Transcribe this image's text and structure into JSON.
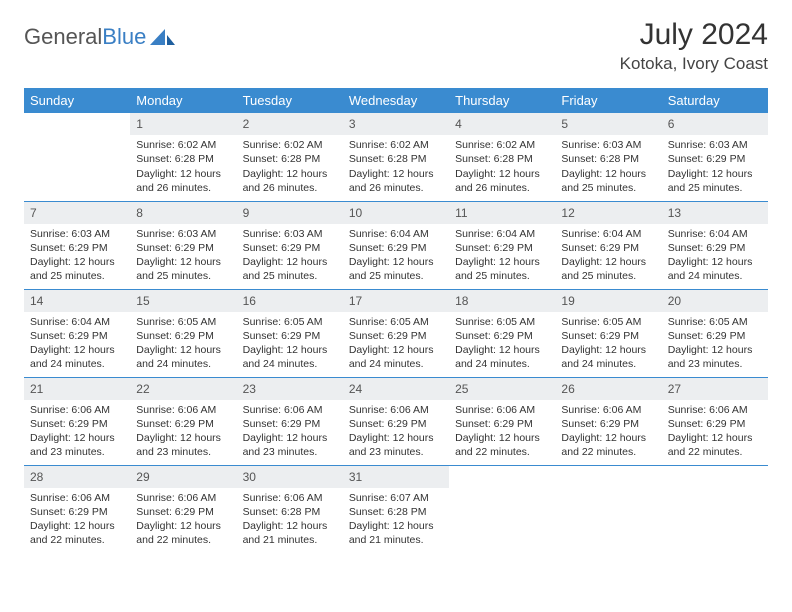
{
  "logo": {
    "text1": "General",
    "text2": "Blue"
  },
  "title": "July 2024",
  "location": "Kotoka, Ivory Coast",
  "colors": {
    "header_bg": "#3a8bd0",
    "header_text": "#ffffff",
    "daynum_bg": "#eceef0",
    "cell_border": "#3a8bd0",
    "logo_blue": "#3a7fc4"
  },
  "weekdays": [
    "Sunday",
    "Monday",
    "Tuesday",
    "Wednesday",
    "Thursday",
    "Friday",
    "Saturday"
  ],
  "weeks": [
    [
      null,
      {
        "day": "1",
        "sunrise": "Sunrise: 6:02 AM",
        "sunset": "Sunset: 6:28 PM",
        "daylight1": "Daylight: 12 hours",
        "daylight2": "and 26 minutes."
      },
      {
        "day": "2",
        "sunrise": "Sunrise: 6:02 AM",
        "sunset": "Sunset: 6:28 PM",
        "daylight1": "Daylight: 12 hours",
        "daylight2": "and 26 minutes."
      },
      {
        "day": "3",
        "sunrise": "Sunrise: 6:02 AM",
        "sunset": "Sunset: 6:28 PM",
        "daylight1": "Daylight: 12 hours",
        "daylight2": "and 26 minutes."
      },
      {
        "day": "4",
        "sunrise": "Sunrise: 6:02 AM",
        "sunset": "Sunset: 6:28 PM",
        "daylight1": "Daylight: 12 hours",
        "daylight2": "and 26 minutes."
      },
      {
        "day": "5",
        "sunrise": "Sunrise: 6:03 AM",
        "sunset": "Sunset: 6:28 PM",
        "daylight1": "Daylight: 12 hours",
        "daylight2": "and 25 minutes."
      },
      {
        "day": "6",
        "sunrise": "Sunrise: 6:03 AM",
        "sunset": "Sunset: 6:29 PM",
        "daylight1": "Daylight: 12 hours",
        "daylight2": "and 25 minutes."
      }
    ],
    [
      {
        "day": "7",
        "sunrise": "Sunrise: 6:03 AM",
        "sunset": "Sunset: 6:29 PM",
        "daylight1": "Daylight: 12 hours",
        "daylight2": "and 25 minutes."
      },
      {
        "day": "8",
        "sunrise": "Sunrise: 6:03 AM",
        "sunset": "Sunset: 6:29 PM",
        "daylight1": "Daylight: 12 hours",
        "daylight2": "and 25 minutes."
      },
      {
        "day": "9",
        "sunrise": "Sunrise: 6:03 AM",
        "sunset": "Sunset: 6:29 PM",
        "daylight1": "Daylight: 12 hours",
        "daylight2": "and 25 minutes."
      },
      {
        "day": "10",
        "sunrise": "Sunrise: 6:04 AM",
        "sunset": "Sunset: 6:29 PM",
        "daylight1": "Daylight: 12 hours",
        "daylight2": "and 25 minutes."
      },
      {
        "day": "11",
        "sunrise": "Sunrise: 6:04 AM",
        "sunset": "Sunset: 6:29 PM",
        "daylight1": "Daylight: 12 hours",
        "daylight2": "and 25 minutes."
      },
      {
        "day": "12",
        "sunrise": "Sunrise: 6:04 AM",
        "sunset": "Sunset: 6:29 PM",
        "daylight1": "Daylight: 12 hours",
        "daylight2": "and 25 minutes."
      },
      {
        "day": "13",
        "sunrise": "Sunrise: 6:04 AM",
        "sunset": "Sunset: 6:29 PM",
        "daylight1": "Daylight: 12 hours",
        "daylight2": "and 24 minutes."
      }
    ],
    [
      {
        "day": "14",
        "sunrise": "Sunrise: 6:04 AM",
        "sunset": "Sunset: 6:29 PM",
        "daylight1": "Daylight: 12 hours",
        "daylight2": "and 24 minutes."
      },
      {
        "day": "15",
        "sunrise": "Sunrise: 6:05 AM",
        "sunset": "Sunset: 6:29 PM",
        "daylight1": "Daylight: 12 hours",
        "daylight2": "and 24 minutes."
      },
      {
        "day": "16",
        "sunrise": "Sunrise: 6:05 AM",
        "sunset": "Sunset: 6:29 PM",
        "daylight1": "Daylight: 12 hours",
        "daylight2": "and 24 minutes."
      },
      {
        "day": "17",
        "sunrise": "Sunrise: 6:05 AM",
        "sunset": "Sunset: 6:29 PM",
        "daylight1": "Daylight: 12 hours",
        "daylight2": "and 24 minutes."
      },
      {
        "day": "18",
        "sunrise": "Sunrise: 6:05 AM",
        "sunset": "Sunset: 6:29 PM",
        "daylight1": "Daylight: 12 hours",
        "daylight2": "and 24 minutes."
      },
      {
        "day": "19",
        "sunrise": "Sunrise: 6:05 AM",
        "sunset": "Sunset: 6:29 PM",
        "daylight1": "Daylight: 12 hours",
        "daylight2": "and 24 minutes."
      },
      {
        "day": "20",
        "sunrise": "Sunrise: 6:05 AM",
        "sunset": "Sunset: 6:29 PM",
        "daylight1": "Daylight: 12 hours",
        "daylight2": "and 23 minutes."
      }
    ],
    [
      {
        "day": "21",
        "sunrise": "Sunrise: 6:06 AM",
        "sunset": "Sunset: 6:29 PM",
        "daylight1": "Daylight: 12 hours",
        "daylight2": "and 23 minutes."
      },
      {
        "day": "22",
        "sunrise": "Sunrise: 6:06 AM",
        "sunset": "Sunset: 6:29 PM",
        "daylight1": "Daylight: 12 hours",
        "daylight2": "and 23 minutes."
      },
      {
        "day": "23",
        "sunrise": "Sunrise: 6:06 AM",
        "sunset": "Sunset: 6:29 PM",
        "daylight1": "Daylight: 12 hours",
        "daylight2": "and 23 minutes."
      },
      {
        "day": "24",
        "sunrise": "Sunrise: 6:06 AM",
        "sunset": "Sunset: 6:29 PM",
        "daylight1": "Daylight: 12 hours",
        "daylight2": "and 23 minutes."
      },
      {
        "day": "25",
        "sunrise": "Sunrise: 6:06 AM",
        "sunset": "Sunset: 6:29 PM",
        "daylight1": "Daylight: 12 hours",
        "daylight2": "and 22 minutes."
      },
      {
        "day": "26",
        "sunrise": "Sunrise: 6:06 AM",
        "sunset": "Sunset: 6:29 PM",
        "daylight1": "Daylight: 12 hours",
        "daylight2": "and 22 minutes."
      },
      {
        "day": "27",
        "sunrise": "Sunrise: 6:06 AM",
        "sunset": "Sunset: 6:29 PM",
        "daylight1": "Daylight: 12 hours",
        "daylight2": "and 22 minutes."
      }
    ],
    [
      {
        "day": "28",
        "sunrise": "Sunrise: 6:06 AM",
        "sunset": "Sunset: 6:29 PM",
        "daylight1": "Daylight: 12 hours",
        "daylight2": "and 22 minutes."
      },
      {
        "day": "29",
        "sunrise": "Sunrise: 6:06 AM",
        "sunset": "Sunset: 6:29 PM",
        "daylight1": "Daylight: 12 hours",
        "daylight2": "and 22 minutes."
      },
      {
        "day": "30",
        "sunrise": "Sunrise: 6:06 AM",
        "sunset": "Sunset: 6:28 PM",
        "daylight1": "Daylight: 12 hours",
        "daylight2": "and 21 minutes."
      },
      {
        "day": "31",
        "sunrise": "Sunrise: 6:07 AM",
        "sunset": "Sunset: 6:28 PM",
        "daylight1": "Daylight: 12 hours",
        "daylight2": "and 21 minutes."
      },
      null,
      null,
      null
    ]
  ]
}
